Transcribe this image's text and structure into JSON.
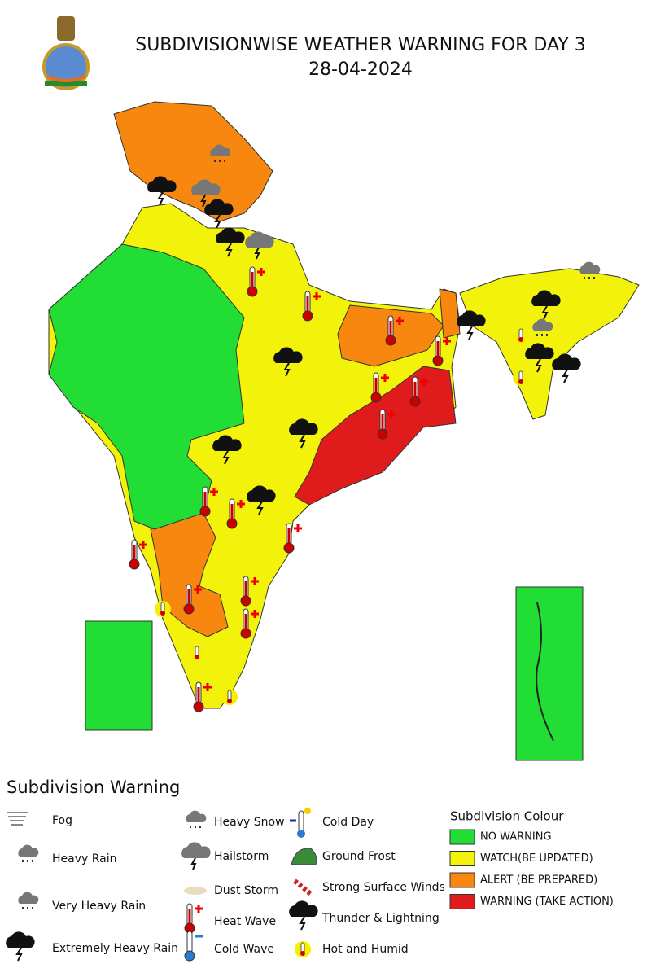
{
  "header": {
    "title": "SUBDIVISIONWISE WEATHER WARNING FOR DAY 3",
    "date": "28-04-2024"
  },
  "warning_legend": {
    "title": "Subdivision Warning",
    "items": [
      "Fog",
      "Heavy Rain",
      "Very Heavy Rain",
      "Extremely Heavy Rain",
      "Heavy Snow",
      "Hailstorm",
      "Dust Storm",
      "Heat Wave",
      "Cold Wave",
      "Cold Day",
      "Ground Frost",
      "Strong Surface Winds",
      "Thunder & Lightning",
      "Hot and Humid"
    ]
  },
  "colour_legend": {
    "title": "Subdivision Colour",
    "items": [
      {
        "label": "NO WARNING",
        "color": "#22dd33"
      },
      {
        "label": "WATCH(BE UPDATED)",
        "color": "#f2f20a"
      },
      {
        "label": "ALERT (BE PREPARED)",
        "color": "#f7870f"
      },
      {
        "label": "WARNING (TAKE ACTION)",
        "color": "#e01b1b"
      }
    ]
  }
}
